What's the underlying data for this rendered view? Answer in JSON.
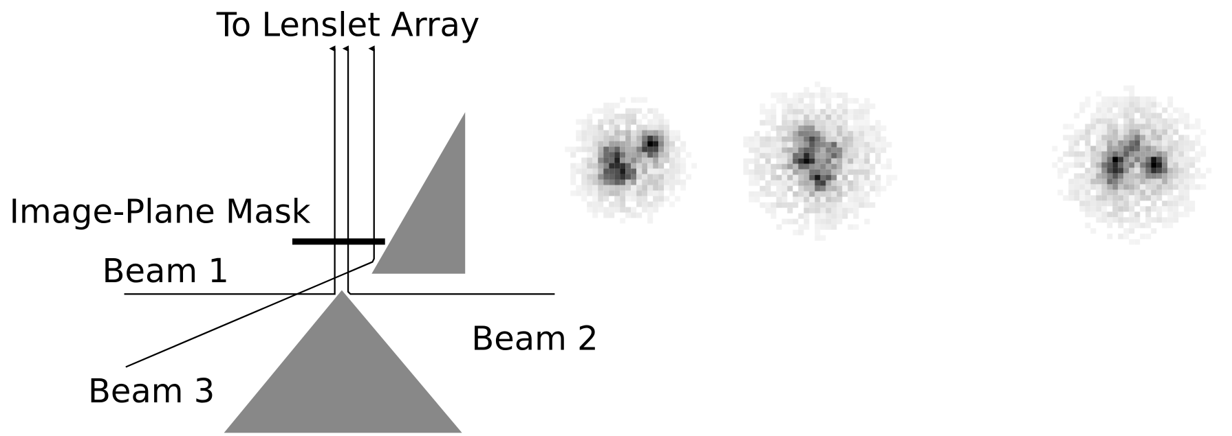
{
  "labels": {
    "output": "To Lenslet Array",
    "mask": "Image-Plane Mask",
    "beam_1": "Beam 1",
    "beam_2": "Beam 2",
    "beam_3": "Beam 3"
  }
}
